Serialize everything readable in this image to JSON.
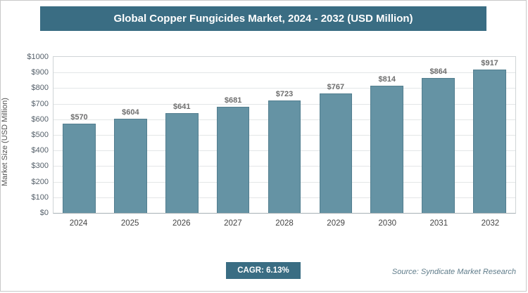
{
  "header": {
    "title": "Global Copper Fungicides Market, 2024 - 2032 (USD Million)"
  },
  "colors": {
    "banner": "#3a6d83",
    "bar": "#6593a4",
    "bar_border": "#527e8f",
    "grid": "#e3e6e7",
    "badge": "#3a6d83",
    "source_text": "#5f7c8a"
  },
  "chart_data": {
    "type": "bar",
    "categories": [
      "2024",
      "2025",
      "2026",
      "2027",
      "2028",
      "2029",
      "2030",
      "2031",
      "2032"
    ],
    "values": [
      570,
      604,
      641,
      681,
      723,
      767,
      814,
      864,
      917
    ],
    "value_labels": [
      "$570",
      "$604",
      "$641",
      "$681",
      "$723",
      "$767",
      "$814",
      "$864",
      "$917"
    ],
    "title": "Global Copper Fungicides Market, 2024 - 2032 (USD Million)",
    "xlabel": "",
    "ylabel": "Market Size (USD Million)",
    "ylim": [
      0,
      1000
    ],
    "ytick_step": 100,
    "ytick_labels": [
      "$0",
      "$100",
      "$200",
      "$300",
      "$400",
      "$500",
      "$600",
      "$700",
      "$800",
      "$900",
      "$1000"
    ],
    "grid": true,
    "legend": "none"
  },
  "footer": {
    "cagr_label": "CAGR: 6.13%",
    "source": "Source: Syndicate Market Research"
  }
}
